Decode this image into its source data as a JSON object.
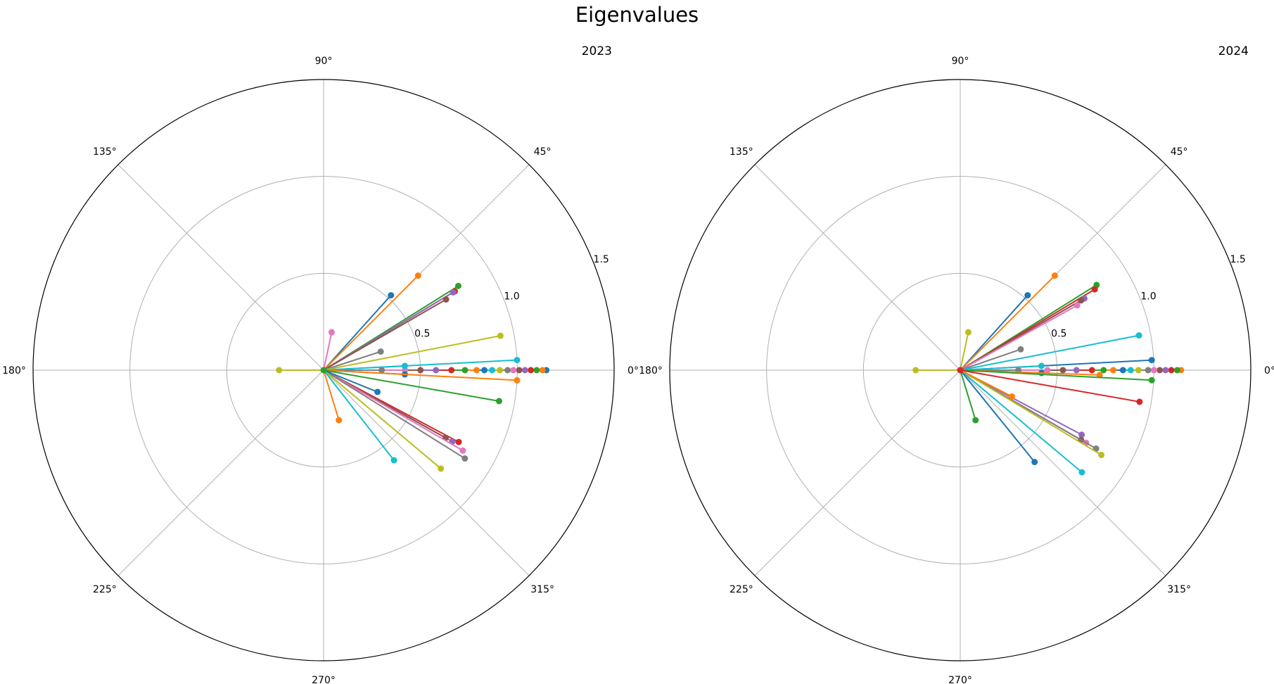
{
  "figure": {
    "title": "Eigenvalues"
  },
  "colors": [
    "#1f77b4",
    "#ff7f0e",
    "#2ca02c",
    "#d62728",
    "#9467bd",
    "#8c564b",
    "#e377c2",
    "#7f7f7f",
    "#bcbd22",
    "#17becf"
  ],
  "chart_data": [
    {
      "type": "polar-scatter",
      "title": "2023",
      "rmax": 1.5,
      "r_ticks": [
        "0.5",
        "1.0",
        "1.5"
      ],
      "theta_ticks": [
        "0°",
        "45°",
        "90°",
        "135°",
        "180°",
        "225°",
        "270°",
        "315°"
      ],
      "grid": true,
      "eigenvalues": [
        {
          "r": 0.52,
          "theta_deg": 48
        },
        {
          "r": 0.69,
          "theta_deg": 45
        },
        {
          "r": 0.82,
          "theta_deg": 32
        },
        {
          "r": 0.79,
          "theta_deg": 31
        },
        {
          "r": 0.78,
          "theta_deg": 31
        },
        {
          "r": 0.73,
          "theta_deg": 30
        },
        {
          "r": 0.2,
          "theta_deg": 78
        },
        {
          "r": 0.31,
          "theta_deg": 18
        },
        {
          "r": 0.93,
          "theta_deg": 11
        },
        {
          "r": 1.0,
          "theta_deg": 3
        },
        {
          "r": 1.15,
          "theta_deg": 0
        },
        {
          "r": 1.13,
          "theta_deg": 0
        },
        {
          "r": 1.1,
          "theta_deg": 0
        },
        {
          "r": 1.07,
          "theta_deg": 0
        },
        {
          "r": 1.04,
          "theta_deg": 0
        },
        {
          "r": 1.01,
          "theta_deg": 0
        },
        {
          "r": 0.98,
          "theta_deg": 0
        },
        {
          "r": 0.95,
          "theta_deg": 0
        },
        {
          "r": 0.91,
          "theta_deg": 0
        },
        {
          "r": 0.87,
          "theta_deg": 0
        },
        {
          "r": 0.83,
          "theta_deg": 0
        },
        {
          "r": 0.79,
          "theta_deg": 0
        },
        {
          "r": 0.73,
          "theta_deg": 0
        },
        {
          "r": 0.66,
          "theta_deg": 0
        },
        {
          "r": 0.58,
          "theta_deg": 0
        },
        {
          "r": 0.5,
          "theta_deg": 0
        },
        {
          "r": 0.42,
          "theta_deg": 0
        },
        {
          "r": 0.3,
          "theta_deg": 0
        },
        {
          "r": 0.23,
          "theta_deg": 180
        },
        {
          "r": 0.42,
          "theta_deg": 3
        },
        {
          "r": 0.42,
          "theta_deg": -3
        },
        {
          "r": 1.0,
          "theta_deg": -3
        },
        {
          "r": 0.92,
          "theta_deg": -10
        },
        {
          "r": 0.79,
          "theta_deg": -28
        },
        {
          "r": 0.76,
          "theta_deg": -29
        },
        {
          "r": 0.72,
          "theta_deg": -29
        },
        {
          "r": 0.83,
          "theta_deg": -30
        },
        {
          "r": 0.86,
          "theta_deg": -32
        },
        {
          "r": 0.79,
          "theta_deg": -40
        },
        {
          "r": 0.59,
          "theta_deg": -52
        },
        {
          "r": 0.3,
          "theta_deg": -22
        },
        {
          "r": 0.27,
          "theta_deg": -73
        },
        {
          "r": 0.0,
          "theta_deg": 0
        }
      ]
    },
    {
      "type": "polar-scatter",
      "title": "2024",
      "rmax": 1.5,
      "r_ticks": [
        "0.5",
        "1.0",
        "1.5"
      ],
      "theta_ticks": [
        "0°",
        "45°",
        "90°",
        "135°",
        "180°",
        "225°",
        "270°",
        "315°"
      ],
      "grid": true,
      "eigenvalues": [
        {
          "r": 0.52,
          "theta_deg": 48
        },
        {
          "r": 0.69,
          "theta_deg": 45
        },
        {
          "r": 0.83,
          "theta_deg": 32
        },
        {
          "r": 0.81,
          "theta_deg": 31
        },
        {
          "r": 0.74,
          "theta_deg": 30
        },
        {
          "r": 0.72,
          "theta_deg": 30
        },
        {
          "r": 0.69,
          "theta_deg": 29
        },
        {
          "r": 0.33,
          "theta_deg": 19
        },
        {
          "r": 0.2,
          "theta_deg": 78
        },
        {
          "r": 0.94,
          "theta_deg": 11
        },
        {
          "r": 0.99,
          "theta_deg": 3
        },
        {
          "r": 1.14,
          "theta_deg": 0
        },
        {
          "r": 1.12,
          "theta_deg": 0
        },
        {
          "r": 1.09,
          "theta_deg": 0
        },
        {
          "r": 1.06,
          "theta_deg": 0
        },
        {
          "r": 1.03,
          "theta_deg": 0
        },
        {
          "r": 1.0,
          "theta_deg": 0
        },
        {
          "r": 0.97,
          "theta_deg": 0
        },
        {
          "r": 0.92,
          "theta_deg": 0
        },
        {
          "r": 0.88,
          "theta_deg": 0
        },
        {
          "r": 0.84,
          "theta_deg": 0
        },
        {
          "r": 0.79,
          "theta_deg": 0
        },
        {
          "r": 0.74,
          "theta_deg": 0
        },
        {
          "r": 0.68,
          "theta_deg": 0
        },
        {
          "r": 0.6,
          "theta_deg": 0
        },
        {
          "r": 0.53,
          "theta_deg": 0
        },
        {
          "r": 0.45,
          "theta_deg": 0
        },
        {
          "r": 0.3,
          "theta_deg": 0
        },
        {
          "r": 0.23,
          "theta_deg": 180
        },
        {
          "r": 0.42,
          "theta_deg": 3
        },
        {
          "r": 0.42,
          "theta_deg": -2
        },
        {
          "r": 0.72,
          "theta_deg": -2
        },
        {
          "r": 0.99,
          "theta_deg": -3
        },
        {
          "r": 0.94,
          "theta_deg": -10
        },
        {
          "r": 0.71,
          "theta_deg": -28
        },
        {
          "r": 0.72,
          "theta_deg": -30
        },
        {
          "r": 0.75,
          "theta_deg": -30
        },
        {
          "r": 0.81,
          "theta_deg": -30
        },
        {
          "r": 0.85,
          "theta_deg": -31
        },
        {
          "r": 0.82,
          "theta_deg": -40
        },
        {
          "r": 0.61,
          "theta_deg": -51
        },
        {
          "r": 0.3,
          "theta_deg": -27
        },
        {
          "r": 0.27,
          "theta_deg": -73
        },
        {
          "r": 0.0,
          "theta_deg": 0
        }
      ]
    }
  ]
}
